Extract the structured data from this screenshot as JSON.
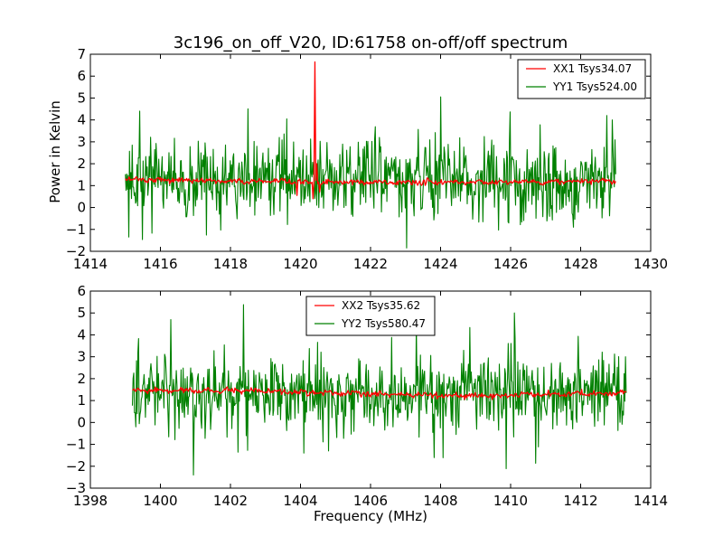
{
  "chart_data": [
    {
      "type": "line",
      "title": "3c196_on_off_V20, ID:61758 on-off/off spectrum",
      "xlabel": "",
      "ylabel": "Power in Kelvin",
      "xlim": [
        1414,
        1430
      ],
      "ylim": [
        -2,
        7
      ],
      "xticks": [
        "1414",
        "1416",
        "1418",
        "1420",
        "1422",
        "1424",
        "1426",
        "1428",
        "1430"
      ],
      "yticks": [
        "−2",
        "−1",
        "0",
        "1",
        "2",
        "3",
        "4",
        "5",
        "6",
        "7"
      ],
      "legend_position": "top-right",
      "grid": false,
      "series": [
        {
          "name": "XX1 Tsys34.07",
          "color": "#ff0000",
          "noise": "low",
          "x_range": [
            1415.0,
            1429.0
          ],
          "baseline": [
            [
              1415.0,
              1.3
            ],
            [
              1418.0,
              1.2
            ],
            [
              1420.0,
              1.15
            ],
            [
              1424.0,
              1.15
            ],
            [
              1429.0,
              1.2
            ]
          ],
          "features": [
            [
              1419.9,
              0.55
            ],
            [
              1420.35,
              0.4
            ],
            [
              1420.41,
              6.65
            ],
            [
              1420.47,
              2.0
            ],
            [
              1420.55,
              0.7
            ]
          ]
        },
        {
          "name": "YY1 Tsys524.00",
          "color": "#008000",
          "noise": "high",
          "x_range": [
            1415.0,
            1429.0
          ],
          "baseline": [
            [
              1415.0,
              1.3
            ],
            [
              1422.0,
              1.3
            ],
            [
              1429.0,
              1.3
            ]
          ],
          "features": [
            [
              1415.1,
              -1.35
            ],
            [
              1415.4,
              4.4
            ],
            [
              1424.0,
              5.05
            ],
            [
              1427.8,
              -0.9
            ],
            [
              1428.75,
              4.2
            ],
            [
              1428.9,
              4.0
            ]
          ]
        }
      ]
    },
    {
      "type": "line",
      "title": "",
      "xlabel": "Frequency (MHz)",
      "ylabel": "",
      "xlim": [
        1398,
        1414
      ],
      "ylim": [
        -3,
        6
      ],
      "xticks": [
        "1398",
        "1400",
        "1402",
        "1404",
        "1406",
        "1408",
        "1410",
        "1412",
        "1414"
      ],
      "yticks": [
        "−3",
        "−2",
        "−1",
        "0",
        "1",
        "2",
        "3",
        "4",
        "5",
        "6"
      ],
      "legend_position": "top-center",
      "grid": false,
      "series": [
        {
          "name": "XX2 Tsys35.62",
          "color": "#ff0000",
          "noise": "low",
          "x_range": [
            1399.2,
            1413.3
          ],
          "baseline": [
            [
              1399.2,
              1.45
            ],
            [
              1402.0,
              1.45
            ],
            [
              1406.0,
              1.3
            ],
            [
              1409.0,
              1.2
            ],
            [
              1413.3,
              1.35
            ]
          ],
          "features": []
        },
        {
          "name": "YY2 Tsys580.47",
          "color": "#008000",
          "noise": "high",
          "x_range": [
            1399.2,
            1413.3
          ],
          "baseline": [
            [
              1399.2,
              1.4
            ],
            [
              1406.0,
              1.3
            ],
            [
              1413.3,
              1.4
            ]
          ],
          "features": [
            [
              1399.3,
              -0.2
            ],
            [
              1400.3,
              4.7
            ],
            [
              1400.95,
              -2.4
            ],
            [
              1404.1,
              -1.4
            ],
            [
              1404.8,
              -1.3
            ],
            [
              1407.3,
              4.4
            ],
            [
              1410.1,
              5.0
            ]
          ]
        }
      ]
    }
  ]
}
